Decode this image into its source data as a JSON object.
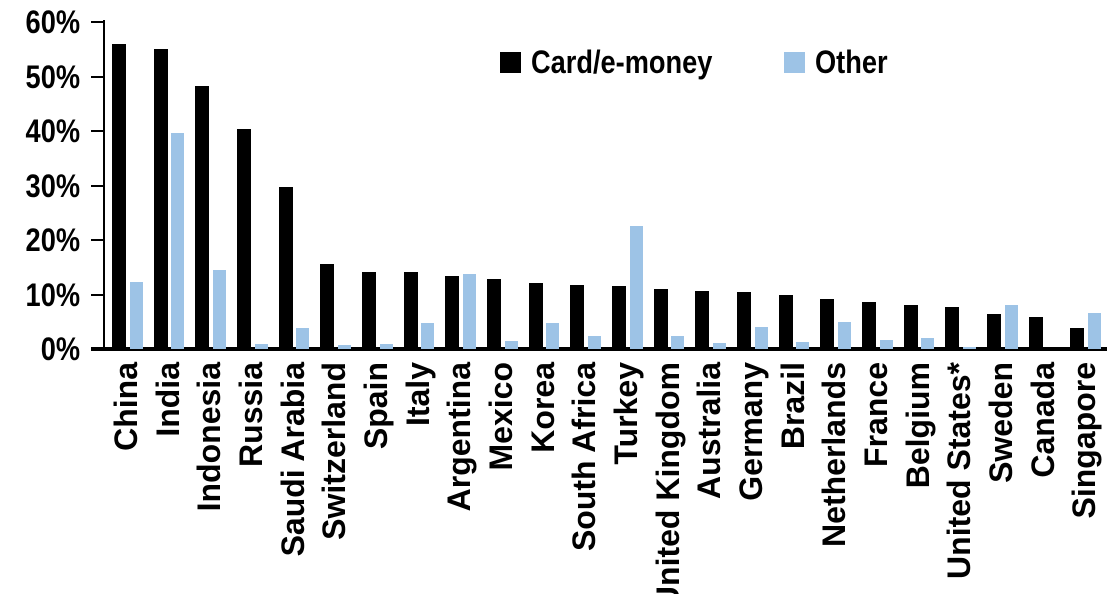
{
  "chart_data": {
    "type": "bar",
    "title": "",
    "xlabel": "",
    "ylabel": "",
    "categories": [
      "China",
      "India",
      "Indonesia",
      "Russia",
      "Saudi Arabia",
      "Switzerland",
      "Spain",
      "Italy",
      "Argentina",
      "Mexico",
      "Korea",
      "South Africa",
      "Turkey",
      "United Kingdom",
      "Australia",
      "Germany",
      "Brazil",
      "Netherlands",
      "France",
      "Belgium",
      "United States*",
      "Sweden",
      "Canada",
      "Singapore"
    ],
    "series": [
      {
        "name": "Card/e-money",
        "color": "#000000",
        "values": [
          56,
          55,
          48.2,
          40.4,
          29.8,
          15.6,
          14.1,
          14.1,
          13.4,
          12.9,
          12.2,
          11.7,
          11.6,
          11.0,
          10.7,
          10.5,
          9.9,
          9.2,
          8.7,
          8.1,
          7.8,
          6.5,
          5.9,
          3.8
        ]
      },
      {
        "name": "Other",
        "color": "#9DC3E6",
        "values": [
          12.3,
          39.7,
          14.5,
          0.9,
          3.9,
          0.7,
          0.9,
          4.7,
          13.8,
          1.4,
          4.7,
          2.4,
          22.5,
          2.4,
          1.1,
          4.0,
          1.2,
          4.9,
          1.6,
          2.1,
          0.3,
          8.0,
          0,
          6.6
        ]
      }
    ],
    "ylim": [
      0,
      60
    ],
    "ytick_labels": [
      "0%",
      "10%",
      "20%",
      "30%",
      "40%",
      "50%",
      "60%"
    ],
    "ytick_values": [
      0,
      10,
      20,
      30,
      40,
      50,
      60
    ],
    "grid": false,
    "legend_position": "top-center",
    "axis_color": "#000000",
    "background_color": "#FFFFFF"
  }
}
